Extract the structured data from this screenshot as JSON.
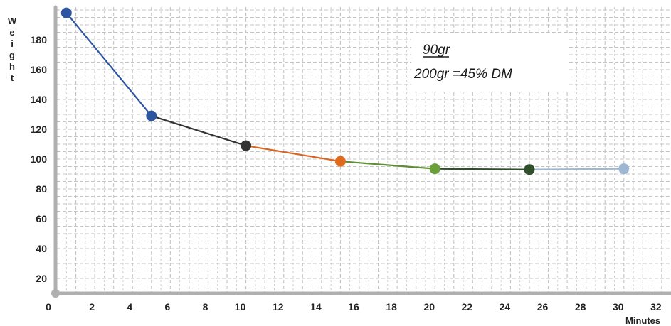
{
  "chart_data": {
    "type": "line",
    "title": "",
    "ylabel": "Weight",
    "xlabel": "Minutes",
    "xlim": [
      0,
      32
    ],
    "ylim": [
      10,
      195
    ],
    "x_ticks": [
      0,
      2,
      4,
      6,
      8,
      10,
      12,
      14,
      16,
      18,
      20,
      22,
      24,
      26,
      28,
      30,
      32
    ],
    "y_ticks": [
      20,
      40,
      60,
      80,
      100,
      120,
      140,
      160,
      180
    ],
    "grid": true,
    "points": [
      {
        "x": 0.5,
        "y": 198,
        "color": "#2e55a0"
      },
      {
        "x": 5,
        "y": 129,
        "color": "#2e55a0"
      },
      {
        "x": 10,
        "y": 109,
        "color": "#333333"
      },
      {
        "x": 15,
        "y": 98.5,
        "color": "#e06a1c"
      },
      {
        "x": 20,
        "y": 93.5,
        "color": "#6aa03c"
      },
      {
        "x": 25,
        "y": 93,
        "color": "#2f4f2a"
      },
      {
        "x": 30,
        "y": 93.5,
        "color": "#9db7d3"
      }
    ],
    "segments": [
      {
        "from": 0,
        "to": 1,
        "color": "#2e55a0"
      },
      {
        "from": 1,
        "to": 2,
        "color": "#333333"
      },
      {
        "from": 2,
        "to": 3,
        "color": "#d9661f"
      },
      {
        "from": 3,
        "to": 4,
        "color": "#5f8f35"
      },
      {
        "from": 4,
        "to": 5,
        "color": "#2f4f2a"
      },
      {
        "from": 5,
        "to": 6,
        "color": "#9db7d3"
      }
    ],
    "annotations": {
      "line1": "90gr",
      "line2": "200gr  =45% DM"
    },
    "axis_color": "#b0b0b0",
    "grid_color": "#c4c4c4"
  }
}
